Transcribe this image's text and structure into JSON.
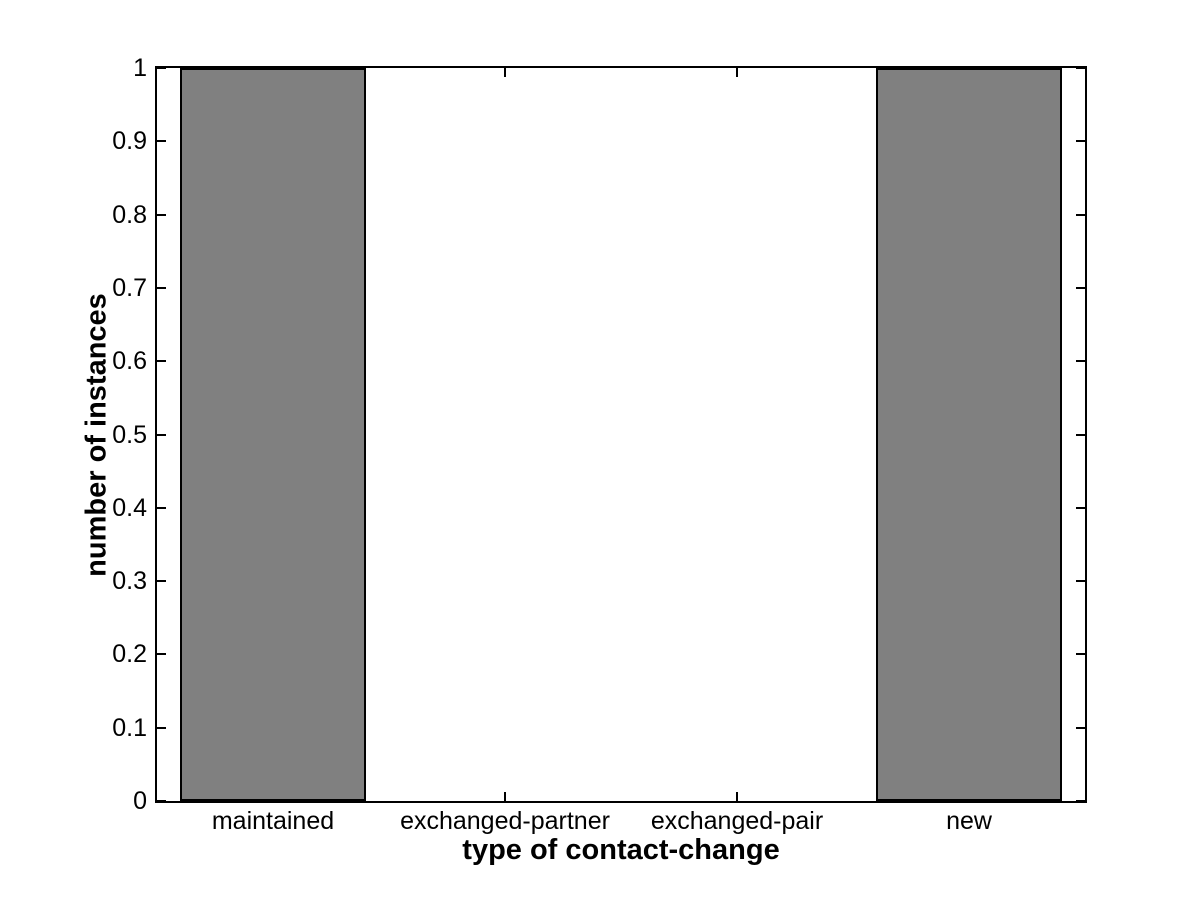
{
  "chart_data": {
    "type": "bar",
    "categories": [
      "maintained",
      "exchanged-partner",
      "exchanged-pair",
      "new"
    ],
    "values": [
      1,
      0,
      0,
      1
    ],
    "title": "",
    "xlabel": "type of contact-change",
    "ylabel": "number of instances",
    "xlim": [
      0.5,
      4.5
    ],
    "ylim": [
      0,
      1
    ],
    "yticks": [
      0,
      0.1,
      0.2,
      0.3,
      0.4,
      0.5,
      0.6,
      0.7,
      0.8,
      0.9,
      1
    ],
    "ytick_labels": [
      "0",
      "0.1",
      "0.2",
      "0.3",
      "0.4",
      "0.5",
      "0.6",
      "0.7",
      "0.8",
      "0.9",
      "1"
    ],
    "bar_width_fraction": 0.8,
    "bar_color": "#808080",
    "bar_edge_color": "#000000",
    "axis_color": "#000000",
    "background_color": "#ffffff",
    "grid": false,
    "legend": null
  }
}
